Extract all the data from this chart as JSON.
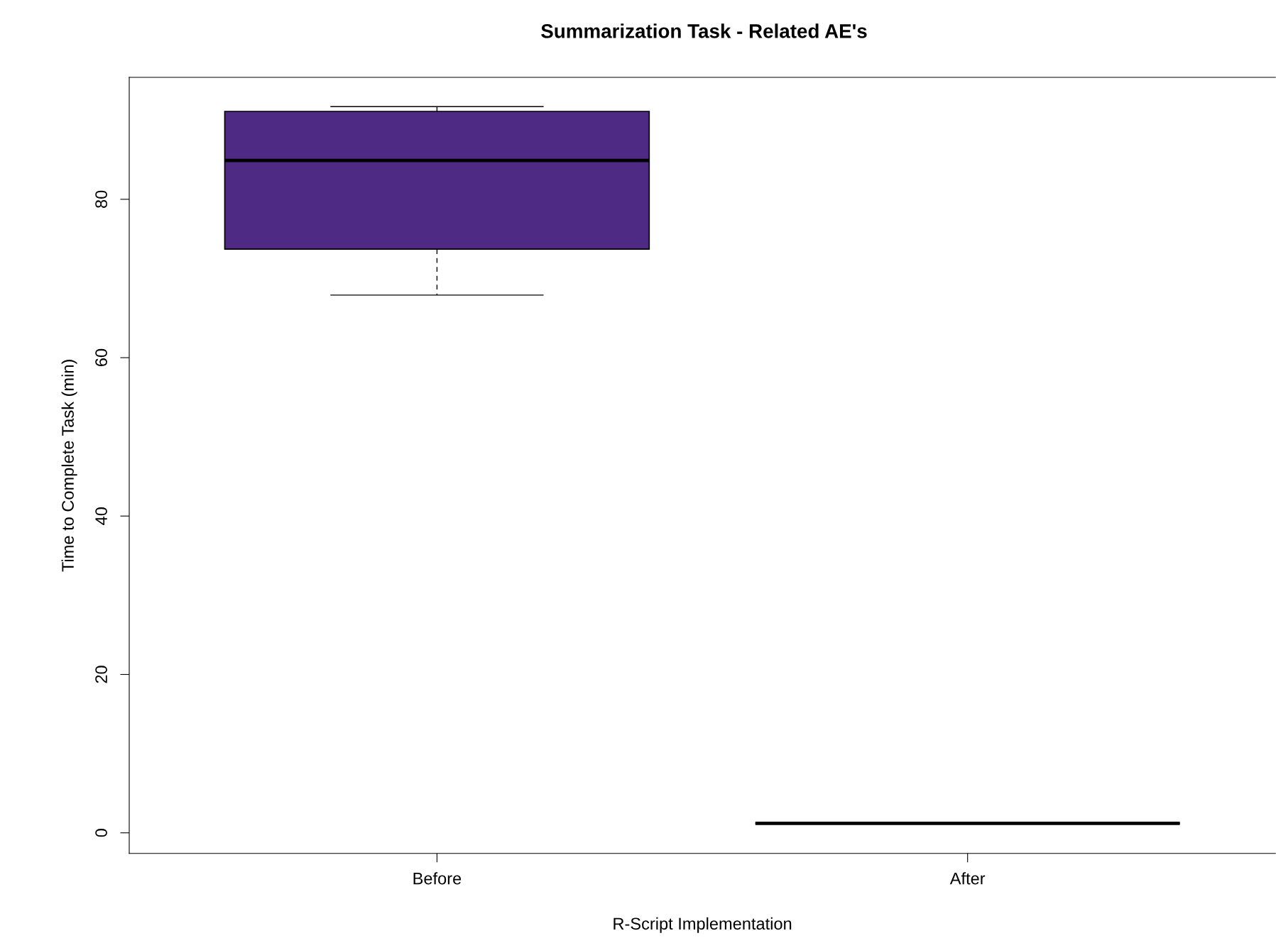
{
  "chart_data": {
    "type": "box",
    "title": "Summarization Task - Related AE's",
    "xlabel": "R-Script Implementation",
    "ylabel": "Time to Complete Task (min)",
    "categories": [
      "Before",
      "After"
    ],
    "boxes": [
      {
        "low": 67.9,
        "q1": 73.7,
        "median": 84.9,
        "q3": 91.1,
        "high": 91.7
      },
      {
        "low": 1.2,
        "q1": 1.2,
        "median": 1.2,
        "q3": 1.2,
        "high": 1.2
      }
    ],
    "colors": [
      "#4e2a84",
      "#000000"
    ],
    "ylim": [
      -2.6,
      95.4
    ],
    "yticks": [
      0,
      20,
      40,
      60,
      80
    ],
    "grid": false
  }
}
